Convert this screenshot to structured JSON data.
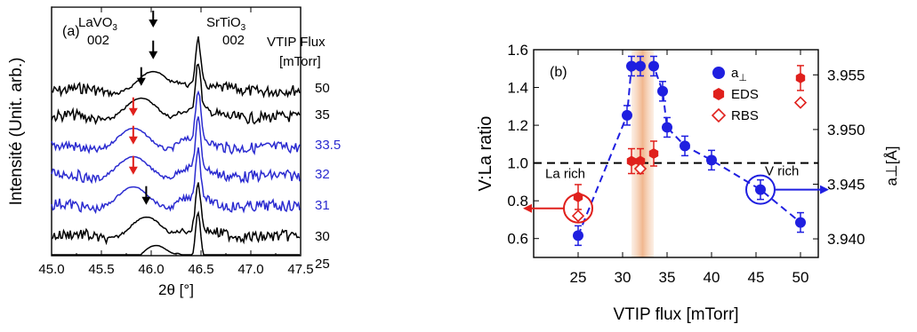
{
  "chart_data": [
    {
      "type": "line",
      "panel_label": "(a)",
      "xlabel": "2θ [°]",
      "ylabel": "Intensité (Unit. arb.)",
      "xlim": [
        45.0,
        47.5
      ],
      "xticks": [
        "45.0",
        "45.5",
        "46.0",
        "46.5",
        "47.0",
        "47.5"
      ],
      "peak_labels": [
        {
          "text": "LaVO",
          "sub": "3",
          "line2": "002",
          "x": 45.82
        },
        {
          "text": "SrTiO",
          "sub": "3",
          "line2": "002",
          "x": 46.47
        }
      ],
      "legend_title_line1": "VTIP Flux",
      "legend_title_line2": "[mTorr]",
      "series": [
        {
          "name": "50",
          "color": "#000000",
          "film_peak": 46.02,
          "arrow": "#000000"
        },
        {
          "name": "35",
          "color": "#000000",
          "film_peak": 45.9,
          "arrow": "#000000"
        },
        {
          "name": "33.5",
          "color": "#2b2bd0",
          "film_peak": 45.82,
          "arrow": "#e0201c"
        },
        {
          "name": "32",
          "color": "#2b2bd0",
          "film_peak": 45.82,
          "arrow": "#e0201c"
        },
        {
          "name": "31",
          "color": "#2b2bd0",
          "film_peak": 45.82,
          "arrow": "#e0201c"
        },
        {
          "name": "30",
          "color": "#000000",
          "film_peak": 45.95,
          "arrow": "#000000"
        },
        {
          "name": "25",
          "color": "#000000",
          "film_peak": 46.05,
          "arrow": "#000000"
        }
      ]
    },
    {
      "type": "scatter",
      "panel_label": "(b)",
      "xlabel": "VTIP flux [mTorr]",
      "ylabel": "V:La ratio",
      "ylabel_right": "a⊥[Å]",
      "xlim": [
        20,
        52
      ],
      "ylim": [
        0.5,
        1.6
      ],
      "ylim_right": [
        3.9383,
        3.9573
      ],
      "xticks": [
        "25",
        "30",
        "35",
        "40",
        "45",
        "50"
      ],
      "yticks": [
        "0.6",
        "0.8",
        "1.0",
        "1.2",
        "1.4",
        "1.6"
      ],
      "yticks_right": [
        "3.940",
        "3.945",
        "3.950",
        "3.955"
      ],
      "legend": [
        "a⊥",
        "EDS",
        "RBS"
      ],
      "reference_line_y": 1.0,
      "highlight_band": [
        31,
        33.5
      ],
      "a_perp": {
        "color": "#1f1fe0",
        "x": [
          25,
          30.5,
          31,
          32,
          33.5,
          34.5,
          35,
          37,
          40,
          45.5,
          50
        ],
        "y": [
          3.9403,
          3.9513,
          3.9558,
          3.9558,
          3.9558,
          3.9535,
          3.9502,
          3.9485,
          3.9472,
          3.9445,
          3.9415
        ]
      },
      "eds": {
        "color": "#e0201c",
        "x": [
          25,
          31,
          32,
          33.5,
          50
        ],
        "y": [
          0.82,
          1.01,
          1.01,
          1.05,
          1.45
        ]
      },
      "rbs": {
        "color": "#e0201c",
        "x": [
          25,
          32,
          50
        ],
        "y": [
          0.72,
          0.97,
          1.32
        ]
      },
      "annotations": {
        "la_rich": "La rich",
        "v_rich": "V rich"
      }
    }
  ]
}
